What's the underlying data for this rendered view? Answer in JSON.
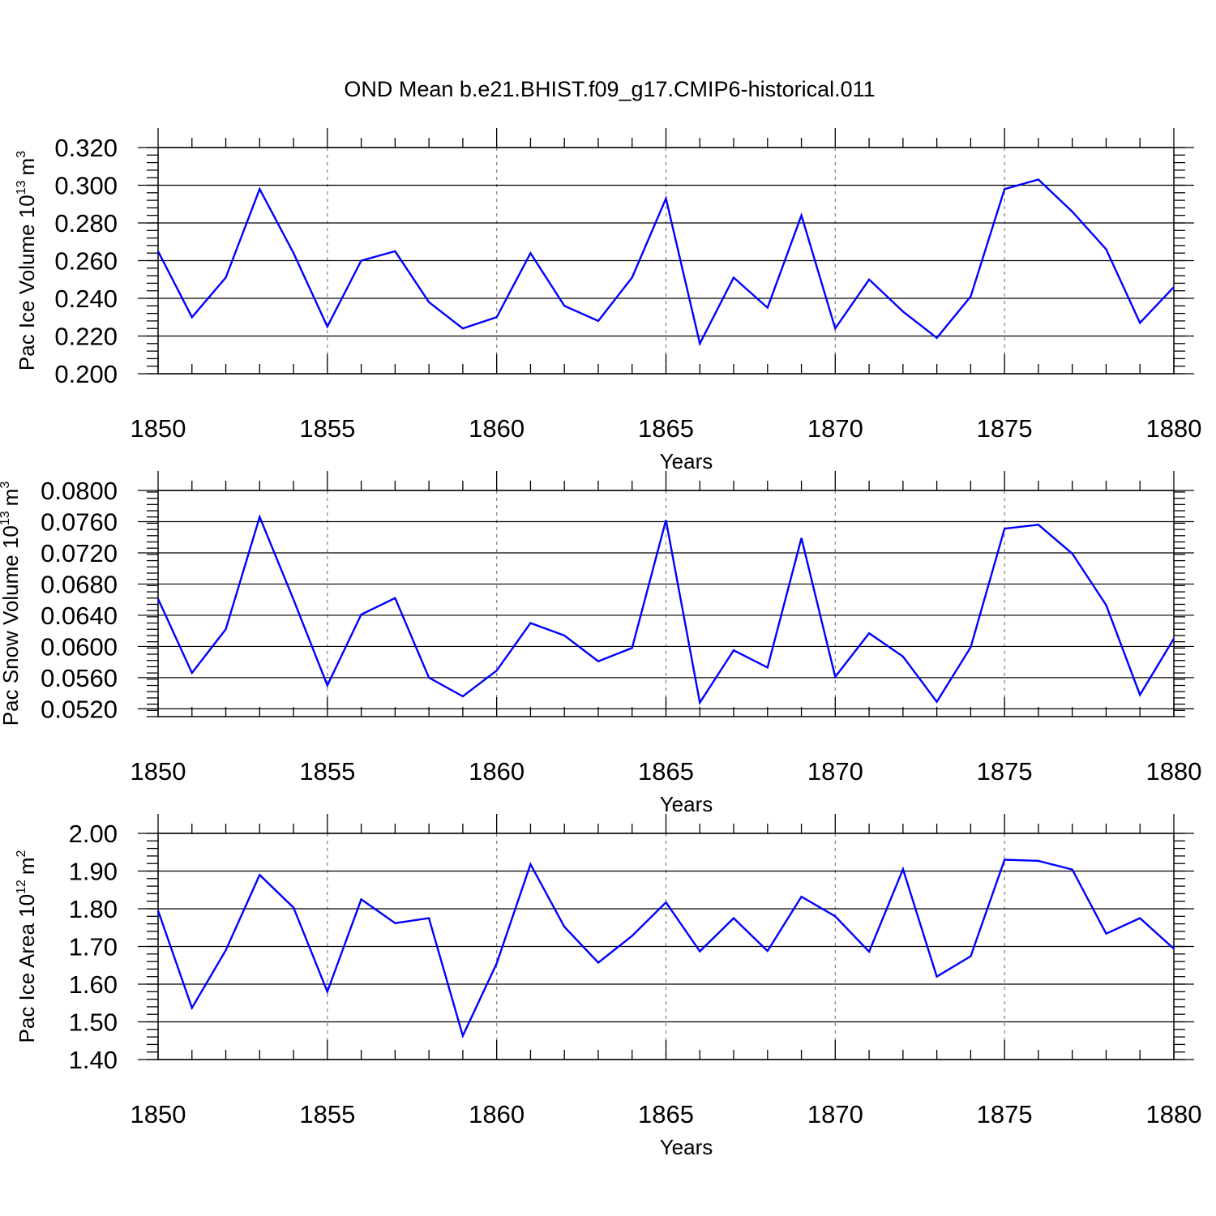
{
  "chart_data": {
    "type": "line",
    "title": "OND Mean b.e21.BHIST.f09_g17.CMIP6-historical.011",
    "line_color": "#0000ff",
    "x": [
      1850,
      1851,
      1852,
      1853,
      1854,
      1855,
      1856,
      1857,
      1858,
      1859,
      1860,
      1861,
      1862,
      1863,
      1864,
      1865,
      1866,
      1867,
      1868,
      1869,
      1870,
      1871,
      1872,
      1873,
      1874,
      1875,
      1876,
      1877,
      1878,
      1879,
      1880
    ],
    "xticks": [
      "1850",
      "1855",
      "1860",
      "1865",
      "1870",
      "1875",
      "1880"
    ],
    "xlim": [
      1850,
      1880
    ],
    "panels": [
      {
        "name": "ice-volume",
        "ylabel": "Pac Ice Volume 10",
        "ylabel_exp": "13",
        "ylabel_unit": "m",
        "ylabel_unit_exp": "3",
        "xlabel": "Years",
        "ylim": [
          0.2,
          0.32
        ],
        "yticks": [
          "0.200",
          "0.220",
          "0.240",
          "0.260",
          "0.280",
          "0.300",
          "0.320"
        ],
        "yvalues": [
          0.2,
          0.22,
          0.24,
          0.26,
          0.28,
          0.3,
          0.32
        ],
        "series": [
          {
            "name": "Pac Ice Volume",
            "values": [
              0.265,
              0.23,
              0.251,
              0.298,
              0.264,
              0.225,
              0.26,
              0.265,
              0.238,
              0.224,
              0.23,
              0.264,
              0.236,
              0.228,
              0.251,
              0.293,
              0.216,
              0.251,
              0.235,
              0.284,
              0.224,
              0.25,
              0.233,
              0.219,
              0.241,
              0.298,
              0.303,
              0.286,
              0.266,
              0.227,
              0.246
            ]
          }
        ]
      },
      {
        "name": "snow-volume",
        "ylabel": "Pac Snow Volume 10",
        "ylabel_exp": "13",
        "ylabel_unit": "m",
        "ylabel_unit_exp": "3",
        "xlabel": "Years",
        "ylim": [
          0.051,
          0.08
        ],
        "yticks": [
          "0.0520",
          "0.0560",
          "0.0600",
          "0.0640",
          "0.0680",
          "0.0720",
          "0.0760",
          "0.0800"
        ],
        "yvalues": [
          0.052,
          0.056,
          0.06,
          0.064,
          0.068,
          0.072,
          0.076,
          0.08
        ],
        "series": [
          {
            "name": "Pac Snow Volume",
            "values": [
              0.0661,
              0.0566,
              0.0622,
              0.0766,
              0.066,
              0.055,
              0.0641,
              0.0662,
              0.056,
              0.0536,
              0.0569,
              0.063,
              0.0614,
              0.0581,
              0.0598,
              0.0762,
              0.0528,
              0.0595,
              0.0573,
              0.0739,
              0.0561,
              0.0617,
              0.0587,
              0.0529,
              0.0599,
              0.0751,
              0.0756,
              0.0719,
              0.0653,
              0.0538,
              0.061
            ]
          }
        ]
      },
      {
        "name": "ice-area",
        "ylabel": "Pac Ice Area 10",
        "ylabel_exp": "12",
        "ylabel_unit": "m",
        "ylabel_unit_exp": "2",
        "xlabel": "Years",
        "ylim": [
          1.4,
          2.0
        ],
        "yticks": [
          "1.40",
          "1.50",
          "1.60",
          "1.70",
          "1.80",
          "1.90",
          "2.00"
        ],
        "yvalues": [
          1.4,
          1.5,
          1.6,
          1.7,
          1.8,
          1.9,
          2.0
        ],
        "series": [
          {
            "name": "Pac Ice Area",
            "values": [
              1.795,
              1.537,
              1.69,
              1.89,
              1.803,
              1.58,
              1.825,
              1.762,
              1.775,
              1.463,
              1.655,
              1.918,
              1.752,
              1.657,
              1.728,
              1.817,
              1.687,
              1.775,
              1.688,
              1.832,
              1.78,
              1.686,
              1.905,
              1.62,
              1.674,
              1.93,
              1.927,
              1.904,
              1.734,
              1.775,
              1.694
            ]
          }
        ]
      }
    ]
  }
}
